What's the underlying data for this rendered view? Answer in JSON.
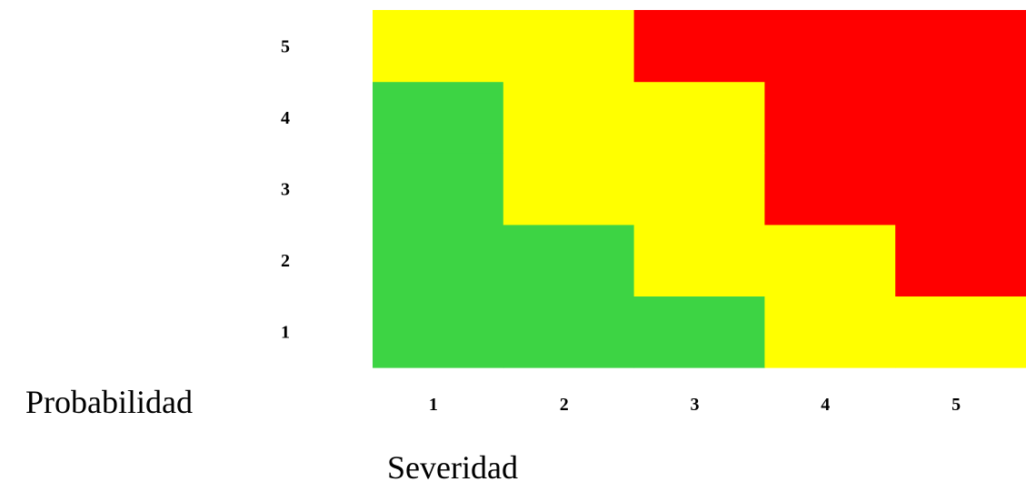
{
  "chart_data": {
    "type": "heatmap",
    "title": "",
    "xlabel": "Severidad",
    "ylabel": "Probabilidad",
    "x_categories": [
      "1",
      "2",
      "3",
      "4",
      "5"
    ],
    "y_categories": [
      "1",
      "2",
      "3",
      "4",
      "5"
    ],
    "color_scale": {
      "green": "#3dd444",
      "yellow": "#ffff00",
      "red": "#ff0000"
    },
    "cells": [
      [
        "green",
        "green",
        "green",
        "yellow",
        "yellow"
      ],
      [
        "green",
        "green",
        "yellow",
        "yellow",
        "red"
      ],
      [
        "green",
        "yellow",
        "yellow",
        "red",
        "red"
      ],
      [
        "green",
        "yellow",
        "yellow",
        "red",
        "red"
      ],
      [
        "yellow",
        "yellow",
        "red",
        "red",
        "red"
      ]
    ]
  }
}
